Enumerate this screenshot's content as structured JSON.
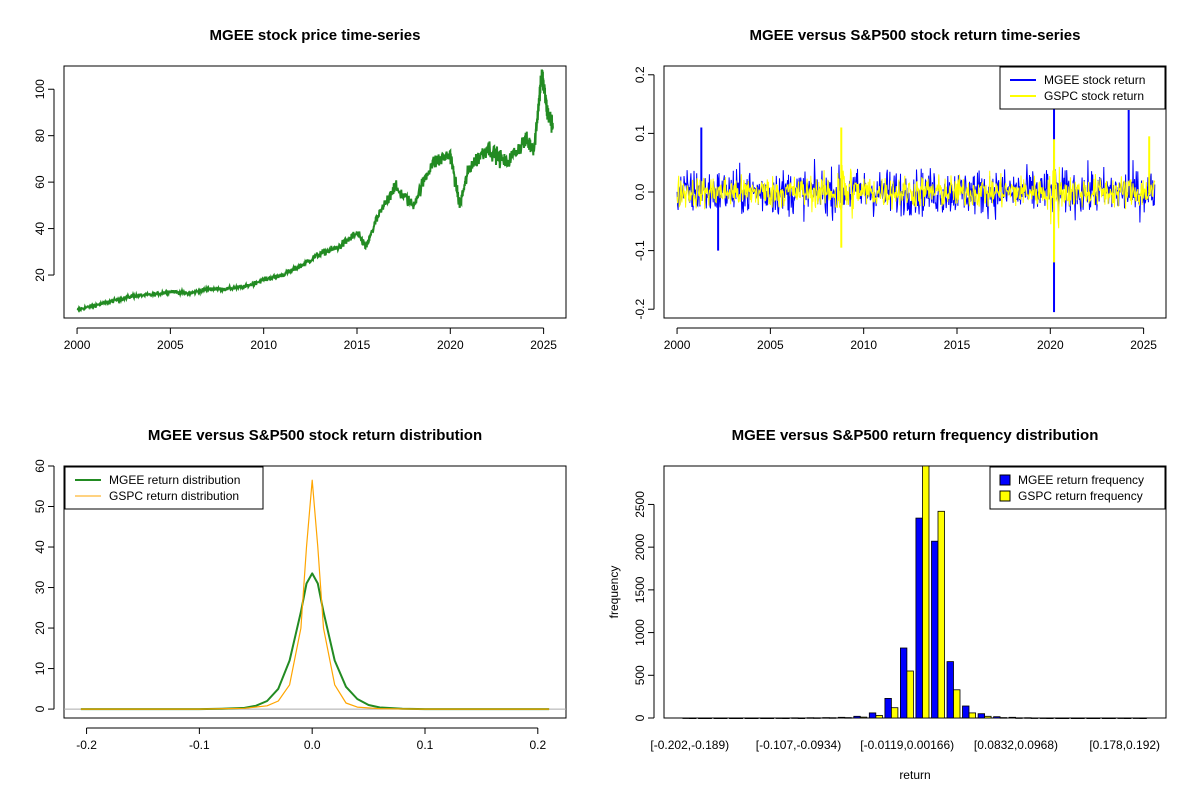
{
  "chart_data": [
    {
      "type": "line",
      "title": "MGEE stock price time-series",
      "xlim": [
        1999.3,
        2026.2
      ],
      "ylim": [
        1.5,
        110
      ],
      "xticks": [
        2000,
        2005,
        2010,
        2015,
        2020,
        2025
      ],
      "yticks": [
        20,
        40,
        60,
        80,
        100
      ],
      "series": [
        {
          "color": "#228b22",
          "x": [
            2000,
            2001,
            2002,
            2003,
            2004,
            2005,
            2006,
            2007,
            2008,
            2009,
            2010,
            2011,
            2012,
            2013,
            2014,
            2015,
            2015.5,
            2016,
            2017,
            2018,
            2019,
            2020,
            2020.5,
            2021,
            2022,
            2023,
            2024,
            2024.5,
            2024.9,
            2025.2,
            2025.5
          ],
          "y": [
            5,
            7,
            9,
            11,
            11.5,
            13,
            12,
            14,
            14,
            15,
            18,
            20,
            24,
            29,
            32,
            38,
            32,
            43,
            58,
            50,
            68,
            72,
            50,
            66,
            75,
            68,
            78,
            75,
            107,
            90,
            84
          ]
        }
      ]
    },
    {
      "type": "line",
      "title": "MGEE versus S&P500 stock return time-series",
      "xlim": [
        1999.3,
        2026.2
      ],
      "ylim": [
        -0.215,
        0.215
      ],
      "xticks": [
        2000,
        2005,
        2010,
        2015,
        2020,
        2025
      ],
      "yticks": [
        -0.2,
        -0.1,
        0.0,
        0.1,
        0.2
      ],
      "ytick_labels": [
        "-0.2",
        "-0.1",
        "0.0",
        "0.1",
        "0.2"
      ],
      "legend": "top-right",
      "series": [
        {
          "name": "MGEE stock return",
          "color": "#0000ff",
          "x_range": [
            2000,
            2025.6
          ],
          "typical_amplitude": 0.035,
          "spikes": [
            [
              2001.3,
              0.11
            ],
            [
              2002.2,
              -0.1
            ],
            [
              2020.2,
              0.15
            ],
            [
              2020.2,
              -0.205
            ],
            [
              2024.2,
              0.14
            ]
          ]
        },
        {
          "name": "GSPC stock return",
          "color": "#ffff00",
          "x_range": [
            2000,
            2025.6
          ],
          "typical_amplitude": 0.025,
          "spikes": [
            [
              2008.8,
              0.11
            ],
            [
              2008.8,
              -0.095
            ],
            [
              2020.2,
              0.09
            ],
            [
              2020.2,
              -0.12
            ],
            [
              2025.3,
              0.095
            ]
          ]
        }
      ]
    },
    {
      "type": "line",
      "title": "MGEE versus S&P500 stock return distribution",
      "xlim": [
        -0.22,
        0.225
      ],
      "ylim": [
        -2.2,
        60
      ],
      "xticks": [
        -0.2,
        -0.1,
        0.0,
        0.1,
        0.2
      ],
      "xtick_labels": [
        "-0.2",
        "-0.1",
        "0.0",
        "0.1",
        "0.2"
      ],
      "yticks": [
        0,
        10,
        20,
        30,
        40,
        50,
        60
      ],
      "legend": "top-left",
      "series": [
        {
          "name": "MGEE return distribution",
          "color": "#228b22",
          "x": [
            -0.205,
            -0.1,
            -0.08,
            -0.06,
            -0.05,
            -0.04,
            -0.03,
            -0.02,
            -0.01,
            -0.005,
            0,
            0.005,
            0.01,
            0.02,
            0.03,
            0.04,
            0.05,
            0.06,
            0.08,
            0.1,
            0.21
          ],
          "y": [
            0,
            0,
            0.1,
            0.3,
            0.8,
            2,
            5,
            12,
            24,
            31,
            33.5,
            31,
            24,
            12,
            5.5,
            2.5,
            1,
            0.4,
            0.1,
            0,
            0
          ]
        },
        {
          "name": "GSPC return distribution",
          "color": "#ffa500",
          "x": [
            -0.205,
            -0.1,
            -0.06,
            -0.04,
            -0.03,
            -0.02,
            -0.01,
            -0.005,
            0,
            0.005,
            0.01,
            0.02,
            0.03,
            0.04,
            0.06,
            0.1,
            0.21
          ],
          "y": [
            0,
            0,
            0.2,
            0.8,
            2,
            6,
            20,
            40,
            56.5,
            40,
            20,
            6,
            1.5,
            0.5,
            0.1,
            0,
            0
          ]
        }
      ]
    },
    {
      "type": "bar",
      "title": "MGEE versus S&P500 return frequency distribution",
      "xlabel": "return",
      "ylabel": "frequency",
      "ylim": [
        0,
        2950
      ],
      "yticks": [
        0,
        500,
        1000,
        1500,
        2000,
        2500
      ],
      "legend": "top-right",
      "category_labels_shown": [
        "[-0.202,-0.189)",
        "[-0.107,-0.0934)",
        "[-0.0119,0.00166)",
        "[0.0832,0.0968)",
        "[0.178,0.192)"
      ],
      "shown_label_bin_index": [
        0,
        7,
        14,
        21,
        28
      ],
      "bin_count": 30,
      "series": [
        {
          "name": "MGEE return frequency",
          "color": "#0000ff",
          "values": [
            1,
            0,
            0,
            0,
            0,
            0,
            1,
            2,
            3,
            5,
            8,
            20,
            60,
            230,
            820,
            2340,
            2070,
            660,
            140,
            50,
            15,
            8,
            3,
            1,
            0,
            0,
            0,
            0,
            1,
            1
          ]
        },
        {
          "name": "GSPC return frequency",
          "color": "#ffff00",
          "values": [
            0,
            0,
            0,
            0,
            0,
            0,
            0,
            0,
            2,
            4,
            5,
            10,
            30,
            120,
            550,
            2950,
            2420,
            330,
            60,
            20,
            5,
            2,
            1,
            0,
            0,
            0,
            0,
            0,
            0,
            0
          ]
        }
      ]
    }
  ]
}
